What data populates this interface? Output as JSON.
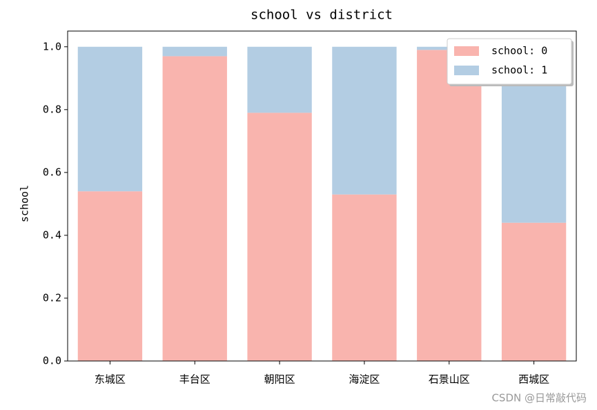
{
  "chart_data": {
    "type": "stacked-bar",
    "title": "school vs district",
    "ylabel": "school",
    "categories": [
      "东城区",
      "丰台区",
      "朝阳区",
      "海淀区",
      "石景山区",
      "西城区"
    ],
    "series": [
      {
        "name": "school: 0",
        "color": "#f9b4ae",
        "values": [
          0.54,
          0.97,
          0.79,
          0.53,
          0.99,
          0.44
        ]
      },
      {
        "name": "school: 1",
        "color": "#b3cde3",
        "values": [
          0.46,
          0.03,
          0.21,
          0.47,
          0.01,
          0.56
        ]
      }
    ],
    "ylim": [
      0,
      1.05
    ],
    "yticks": [
      {
        "value": 0,
        "label": "0.0"
      },
      0.2,
      0.4,
      0.6,
      0.8,
      {
        "value": 1,
        "label": "1.0"
      }
    ],
    "legend": "upper right",
    "watermark": "CSDN @日常敲代码"
  }
}
